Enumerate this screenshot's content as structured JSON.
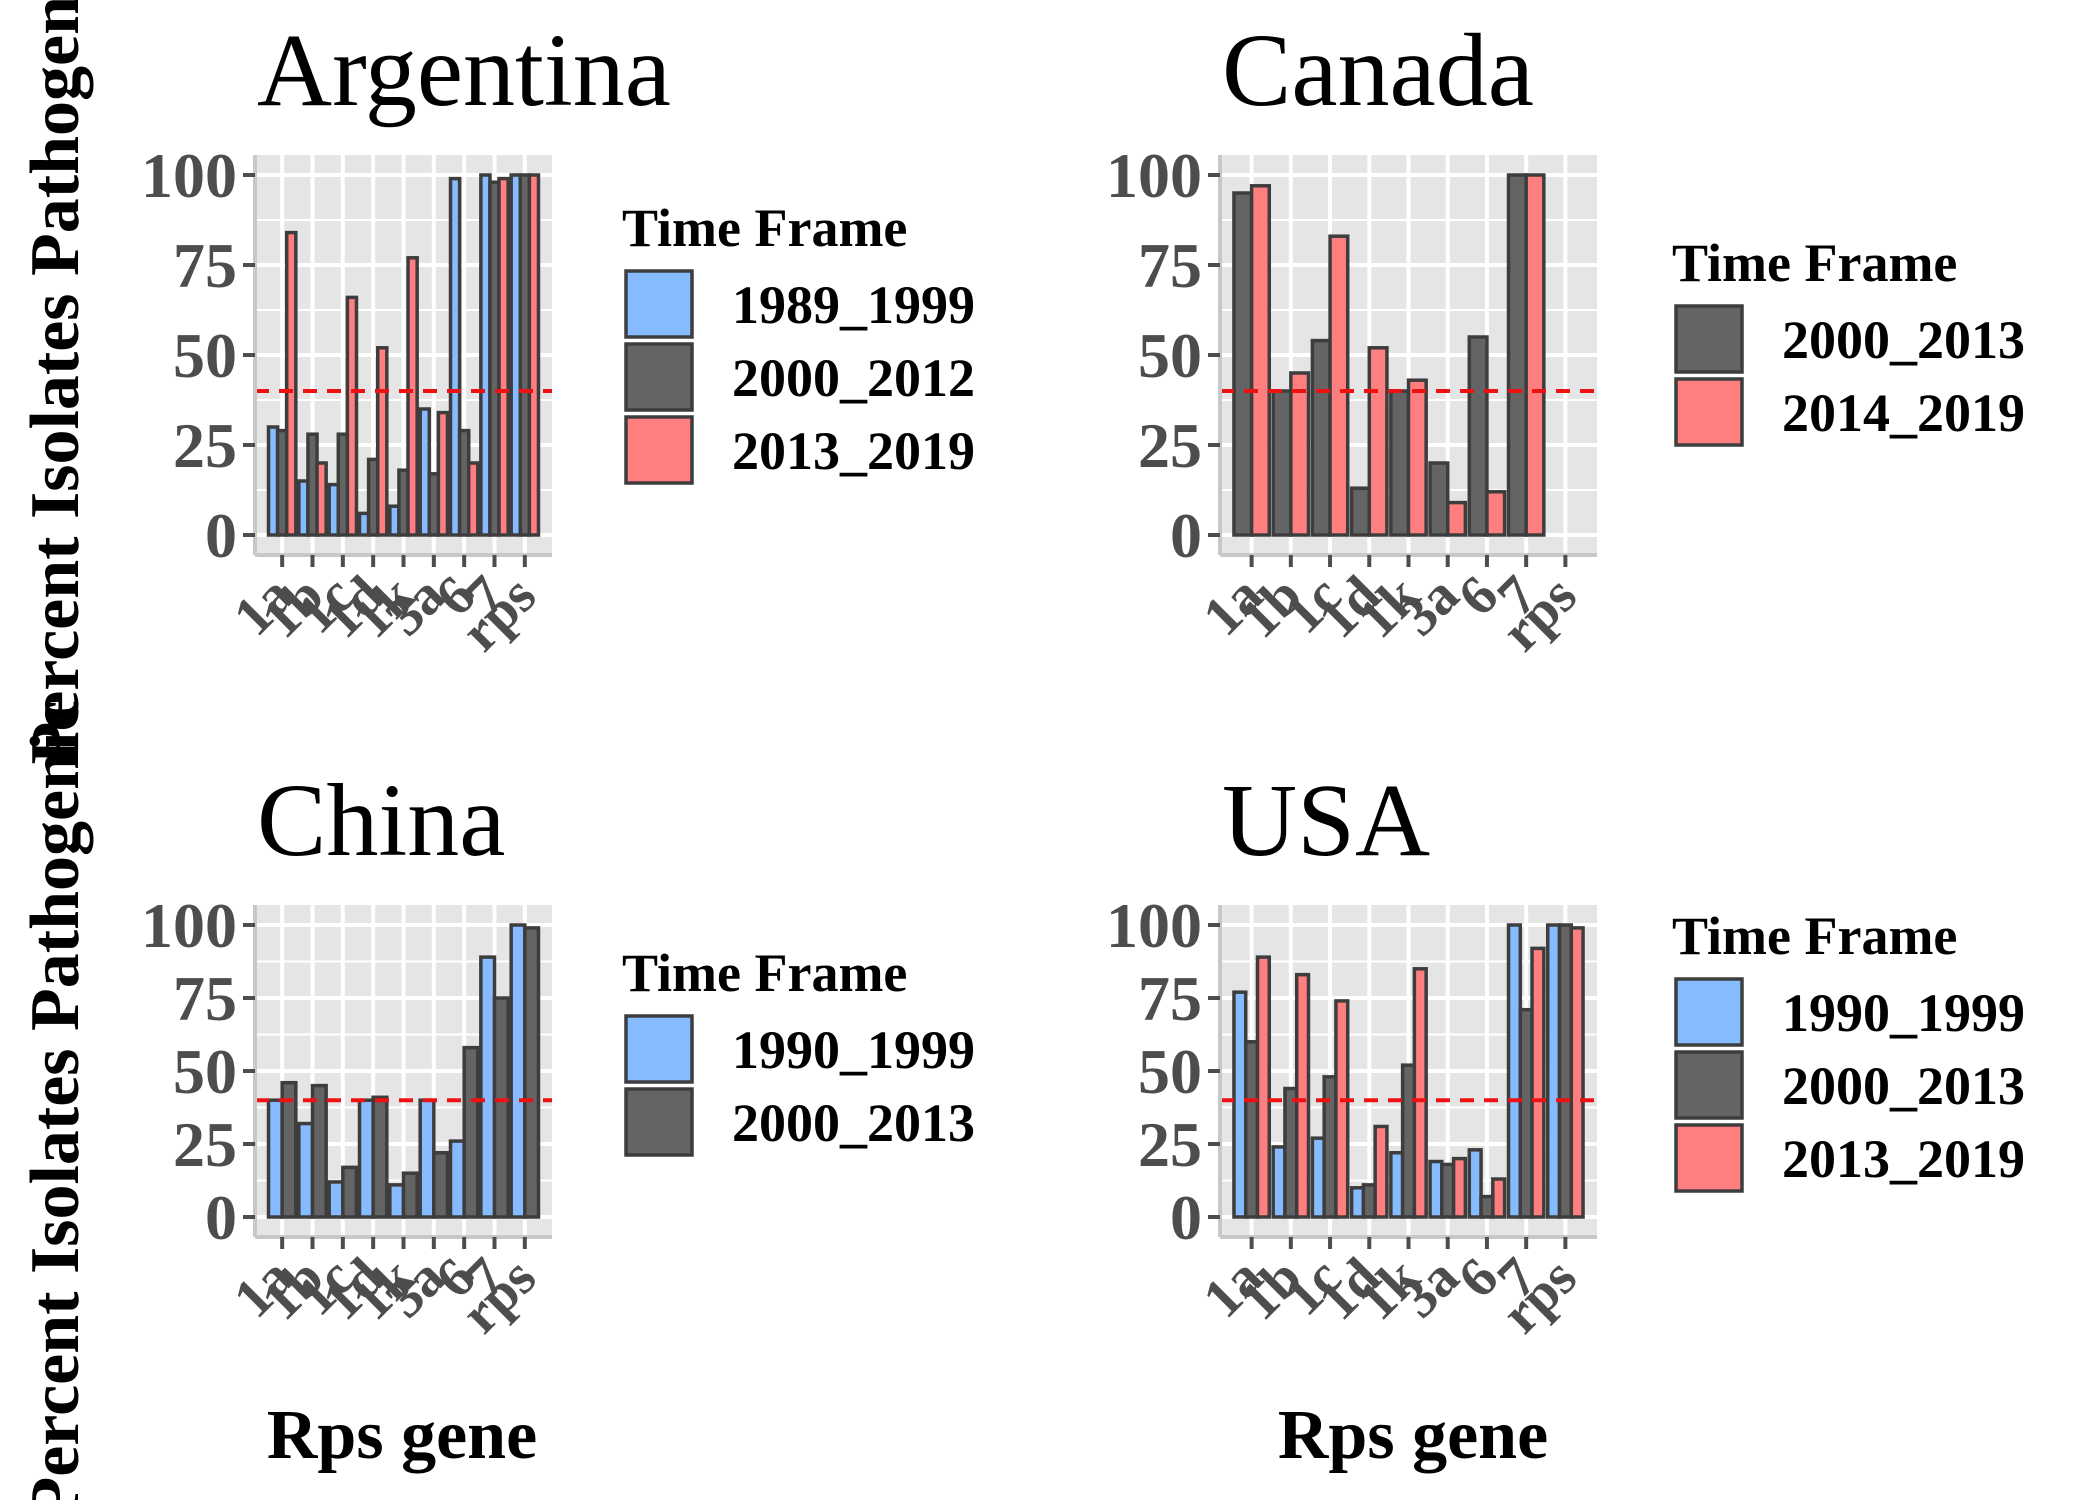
{
  "figure": {
    "ylabel_top": "Percent Isolates Pathogenic",
    "ylabel_bottom": "Percent Isolates Pathogenic",
    "xlabel_left": "Rps gene",
    "xlabel_right": "Rps gene",
    "reference_line": {
      "y": 40,
      "color": "#ee1111"
    }
  },
  "colors": {
    "1989_1999": "#86bcff",
    "1990_1999": "#86bcff",
    "2000_2012": "#646464",
    "2000_2013": "#646464",
    "2013_2019": "#ff7f80",
    "2014_2019": "#ff7f80",
    "panel_background": "#e5e5e5",
    "grid": "#ffffff",
    "bar_outline": "#3d3d3d"
  },
  "chart_data": [
    {
      "type": "bar",
      "title": "Argentina",
      "legend_title": "Time Frame",
      "ylim": [
        0,
        100
      ],
      "yticks": [
        "0",
        "25",
        "50",
        "75",
        "100"
      ],
      "categories": [
        "1a",
        "1b",
        "1c",
        "1d",
        "1k",
        "3a",
        "6",
        "7",
        "rps"
      ],
      "series": [
        {
          "name": "1989_1999",
          "values": [
            30,
            15,
            14,
            6,
            8,
            35,
            99,
            100,
            100
          ]
        },
        {
          "name": "2000_2012",
          "values": [
            29,
            28,
            28,
            21,
            18,
            17,
            29,
            98,
            100
          ]
        },
        {
          "name": "2013_2019",
          "values": [
            84,
            20,
            66,
            52,
            77,
            34,
            20,
            99,
            100
          ]
        }
      ]
    },
    {
      "type": "bar",
      "title": "Canada",
      "legend_title": "Time Frame",
      "ylim": [
        0,
        100
      ],
      "yticks": [
        "0",
        "25",
        "50",
        "75",
        "100"
      ],
      "categories": [
        "1a",
        "1b",
        "1c",
        "1d",
        "1k",
        "3a",
        "6",
        "7",
        "rps"
      ],
      "series": [
        {
          "name": "2000_2013",
          "values": [
            95,
            40,
            54,
            13,
            40,
            20,
            55,
            100,
            null
          ]
        },
        {
          "name": "2014_2019",
          "values": [
            97,
            45,
            83,
            52,
            43,
            9,
            12,
            100,
            null
          ]
        }
      ]
    },
    {
      "type": "bar",
      "title": "China",
      "legend_title": "Time Frame",
      "ylim": [
        0,
        100
      ],
      "yticks": [
        "0",
        "25",
        "50",
        "75",
        "100"
      ],
      "categories": [
        "1a",
        "1b",
        "1c",
        "1d",
        "1k",
        "3a",
        "6",
        "7",
        "rps"
      ],
      "series": [
        {
          "name": "1990_1999",
          "values": [
            40,
            32,
            12,
            40,
            11,
            40,
            26,
            89,
            100
          ]
        },
        {
          "name": "2000_2013",
          "values": [
            46,
            45,
            17,
            41,
            15,
            22,
            58,
            75,
            99
          ]
        }
      ]
    },
    {
      "type": "bar",
      "title": "USA",
      "legend_title": "Time Frame",
      "ylim": [
        0,
        100
      ],
      "yticks": [
        "0",
        "25",
        "50",
        "75",
        "100"
      ],
      "categories": [
        "1a",
        "1b",
        "1c",
        "1d",
        "1k",
        "3a",
        "6",
        "7",
        "rps"
      ],
      "series": [
        {
          "name": "1990_1999",
          "values": [
            77,
            24,
            27,
            10,
            22,
            19,
            23,
            100,
            100
          ]
        },
        {
          "name": "2000_2013",
          "values": [
            60,
            44,
            48,
            11,
            52,
            18,
            7,
            71,
            100
          ]
        },
        {
          "name": "2013_2019",
          "values": [
            89,
            83,
            74,
            31,
            85,
            20,
            13,
            92,
            99
          ]
        }
      ]
    }
  ]
}
